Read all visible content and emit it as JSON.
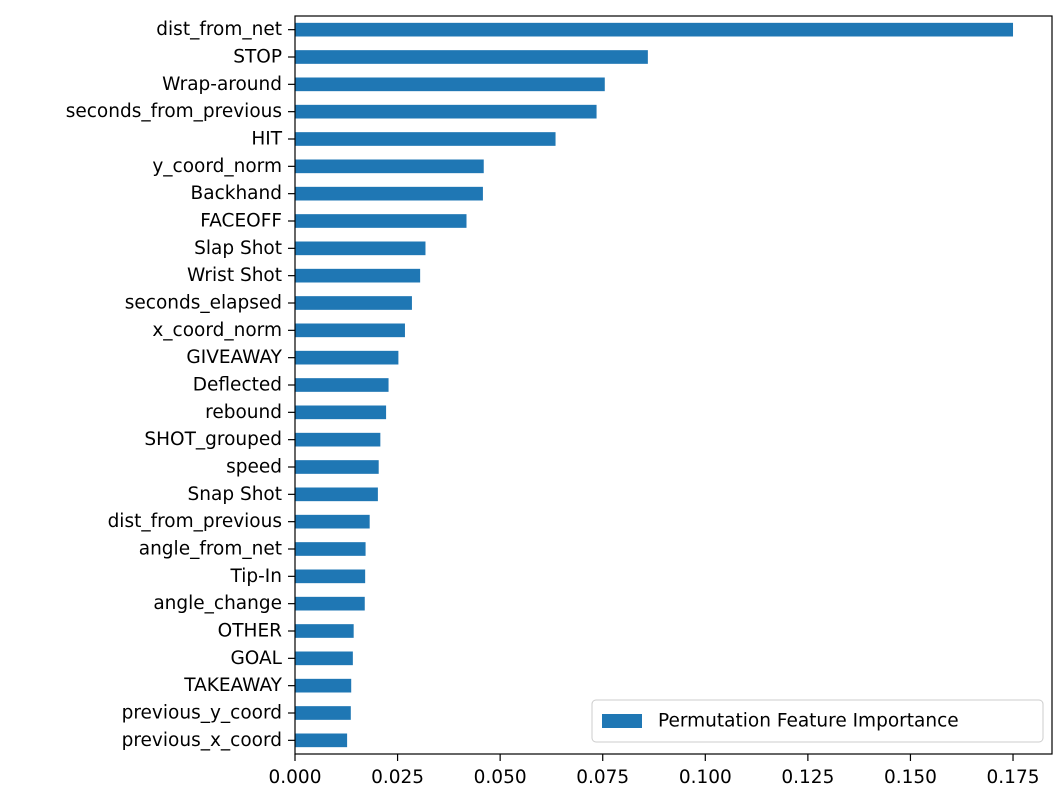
{
  "chart_data": {
    "type": "bar",
    "orientation": "horizontal",
    "title": "",
    "xlabel": "",
    "ylabel": "",
    "categories": [
      "dist_from_net",
      "STOP",
      "Wrap-around",
      "seconds_from_previous",
      "HIT",
      "y_coord_norm",
      "Backhand",
      "FACEOFF",
      "Slap Shot",
      "Wrist Shot",
      "seconds_elapsed",
      "x_coord_norm",
      "GIVEAWAY",
      "Deflected",
      "rebound",
      "SHOT_grouped",
      "speed",
      "Snap Shot",
      "dist_from_previous",
      "angle_from_net",
      "Tip-In",
      "angle_change",
      "OTHER",
      "GOAL",
      "TAKEAWAY",
      "previous_y_coord",
      "previous_x_coord"
    ],
    "series": [
      {
        "name": "Permutation Feature Importance",
        "color": "#1f77b4",
        "values": [
          0.175,
          0.086,
          0.0755,
          0.0735,
          0.0635,
          0.046,
          0.0458,
          0.0418,
          0.0318,
          0.0305,
          0.0285,
          0.0268,
          0.0252,
          0.0228,
          0.0222,
          0.0208,
          0.0204,
          0.0202,
          0.0182,
          0.0172,
          0.0171,
          0.017,
          0.0143,
          0.0141,
          0.0137,
          0.0136,
          0.0127
        ]
      }
    ],
    "xlim": [
      0,
      0.1845
    ],
    "xticks": [
      "0.000",
      "0.025",
      "0.050",
      "0.075",
      "0.100",
      "0.125",
      "0.150",
      "0.175"
    ],
    "xtick_values": [
      0,
      0.025,
      0.05,
      0.075,
      0.1,
      0.125,
      0.15,
      0.175
    ],
    "grid": false,
    "legend_placement": "lower-right"
  }
}
